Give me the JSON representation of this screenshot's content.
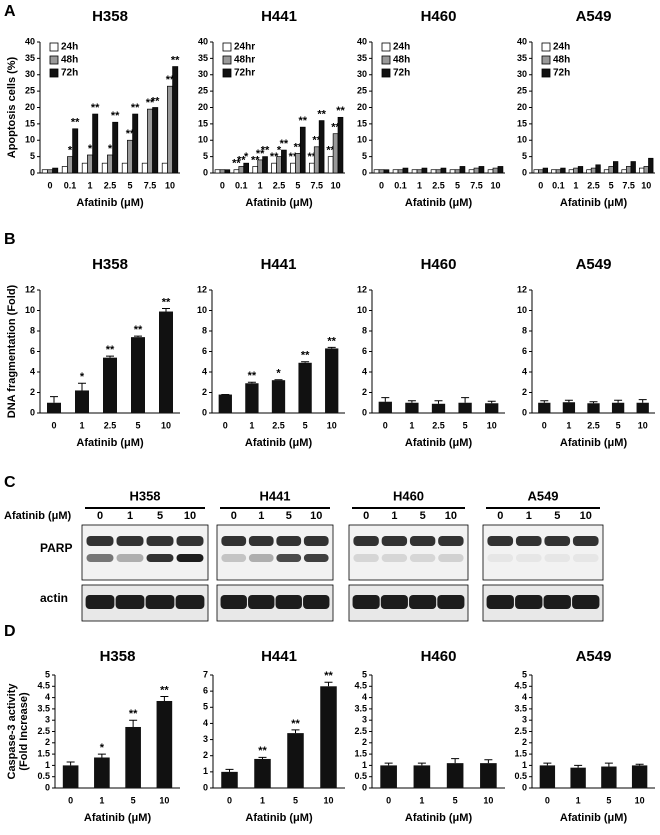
{
  "panel_labels": [
    "A",
    "B",
    "C",
    "D"
  ],
  "chart_data": [
    {
      "type": "bar",
      "title": "H358",
      "ylabel": [
        "Apoptosis cells (%)"
      ],
      "xlabel": "Afatinib (μM)",
      "categories": [
        "0",
        "0.1",
        "1",
        "2.5",
        "5",
        "7.5",
        "10"
      ],
      "ylim": [
        0,
        40
      ],
      "yticks": [
        0,
        5,
        10,
        15,
        20,
        25,
        30,
        35,
        40
      ],
      "legend": "upper left",
      "series": [
        {
          "name": "24h",
          "color": "#ffffff",
          "values": [
            1,
            2,
            3,
            3,
            3,
            3,
            3
          ],
          "stars": [
            null,
            null,
            null,
            null,
            null,
            null,
            null
          ]
        },
        {
          "name": "48h",
          "color": "#999999",
          "values": [
            1,
            5,
            5.5,
            5.5,
            10,
            19.5,
            26.5
          ],
          "stars": [
            null,
            "*",
            "*",
            "*",
            "**",
            "**",
            "**"
          ]
        },
        {
          "name": "72h",
          "color": "#111111",
          "values": [
            1.5,
            13.5,
            18,
            15.5,
            18,
            20,
            32.5
          ],
          "stars": [
            null,
            "**",
            "**",
            "**",
            "**",
            "**",
            "**"
          ]
        }
      ]
    },
    {
      "type": "bar",
      "title": "H441",
      "xlabel": "Afatinib (μM)",
      "categories": [
        "0",
        "0.1",
        "1",
        "2.5",
        "5",
        "7.5",
        "10"
      ],
      "ylim": [
        0,
        40
      ],
      "yticks": [
        0,
        5,
        10,
        15,
        20,
        25,
        30,
        35,
        40
      ],
      "legend": "upper left",
      "series": [
        {
          "name": "24hr",
          "color": "#ffffff",
          "values": [
            1,
            1,
            2,
            3,
            3,
            3,
            5
          ],
          "stars": [
            null,
            "**",
            "**",
            "**",
            "**",
            "**",
            "**"
          ]
        },
        {
          "name": "48hr",
          "color": "#999999",
          "values": [
            1,
            2,
            4,
            5,
            6,
            8,
            12
          ],
          "stars": [
            null,
            "**",
            "**",
            "*",
            "**",
            "**",
            "**"
          ]
        },
        {
          "name": "72hr",
          "color": "#111111",
          "values": [
            1,
            3,
            5,
            7,
            14,
            16,
            17
          ],
          "stars": [
            null,
            "*",
            "**",
            "**",
            "**",
            "**",
            "**"
          ]
        }
      ]
    },
    {
      "type": "bar",
      "title": "H460",
      "xlabel": "Afatinib (μM)",
      "categories": [
        "0",
        "0.1",
        "1",
        "2.5",
        "5",
        "7.5",
        "10"
      ],
      "ylim": [
        0,
        40
      ],
      "yticks": [
        0,
        5,
        10,
        15,
        20,
        25,
        30,
        35,
        40
      ],
      "legend": "upper left",
      "series": [
        {
          "name": "24h",
          "color": "#ffffff",
          "values": [
            1,
            1,
            1,
            1,
            1,
            1,
            1
          ]
        },
        {
          "name": "48h",
          "color": "#999999",
          "values": [
            1,
            1,
            1,
            1,
            1,
            1.5,
            1.5
          ]
        },
        {
          "name": "72h",
          "color": "#111111",
          "values": [
            1,
            1.5,
            1.5,
            1.5,
            2,
            2,
            2
          ]
        }
      ]
    },
    {
      "type": "bar",
      "title": "A549",
      "xlabel": "Afatinib (μM)",
      "categories": [
        "0",
        "0.1",
        "1",
        "2.5",
        "5",
        "7.5",
        "10"
      ],
      "ylim": [
        0,
        40
      ],
      "yticks": [
        0,
        5,
        10,
        15,
        20,
        25,
        30,
        35,
        40
      ],
      "legend": "upper left",
      "series": [
        {
          "name": "24h",
          "color": "#ffffff",
          "values": [
            1,
            1,
            1,
            1,
            1,
            1,
            1.5
          ]
        },
        {
          "name": "48h",
          "color": "#999999",
          "values": [
            1,
            1,
            1.5,
            1.5,
            2,
            2,
            2
          ]
        },
        {
          "name": "72h",
          "color": "#111111",
          "values": [
            1.5,
            1.5,
            2,
            2.5,
            3.5,
            3.5,
            4.5
          ]
        }
      ]
    },
    {
      "type": "bar",
      "title": "H358",
      "ylabel": [
        "DNA fragmentation (Fold)"
      ],
      "xlabel": "Afatinib (μM)",
      "categories": [
        "0",
        "1",
        "2.5",
        "5",
        "10"
      ],
      "ylim": [
        0,
        12
      ],
      "yticks": [
        0,
        2,
        4,
        6,
        8,
        10,
        12
      ],
      "color": "#111111",
      "values": [
        1,
        2.2,
        5.4,
        7.4,
        9.9
      ],
      "errors": [
        0.6,
        0.7,
        0.15,
        0.1,
        0.3
      ],
      "stars": [
        null,
        "*",
        "**",
        "**",
        "**"
      ]
    },
    {
      "type": "bar",
      "title": "H441",
      "xlabel": "Afatinib (μM)",
      "categories": [
        "0",
        "1",
        "2.5",
        "5",
        "10"
      ],
      "ylim": [
        0,
        12
      ],
      "yticks": [
        0,
        2,
        4,
        6,
        8,
        10,
        12
      ],
      "color": "#111111",
      "values": [
        1.8,
        2.9,
        3.2,
        4.9,
        6.3
      ],
      "errors": [
        0,
        0.1,
        0.05,
        0.1,
        0.1
      ],
      "stars": [
        null,
        "**",
        "*",
        "**",
        "**"
      ]
    },
    {
      "type": "bar",
      "title": "H460",
      "xlabel": "Afatinib (μM)",
      "categories": [
        "0",
        "1",
        "2.5",
        "5",
        "10"
      ],
      "ylim": [
        0,
        12
      ],
      "yticks": [
        0,
        2,
        4,
        6,
        8,
        10,
        12
      ],
      "color": "#111111",
      "values": [
        1.1,
        1,
        0.9,
        1,
        0.95
      ],
      "errors": [
        0.4,
        0.2,
        0.3,
        0.5,
        0.2
      ]
    },
    {
      "type": "bar",
      "title": "A549",
      "xlabel": "Afatinib (μM)",
      "categories": [
        "0",
        "1",
        "2.5",
        "5",
        "10"
      ],
      "ylim": [
        0,
        12
      ],
      "yticks": [
        0,
        2,
        4,
        6,
        8,
        10,
        12
      ],
      "color": "#111111",
      "values": [
        1,
        1.05,
        0.95,
        1,
        1
      ],
      "errors": [
        0.2,
        0.2,
        0.15,
        0.25,
        0.3
      ]
    },
    {
      "type": "bar",
      "title": "H358",
      "ylabel": [
        "Caspase-3 activity",
        "(Fold Increase)"
      ],
      "xlabel": "Afatinib (μM)",
      "categories": [
        "0",
        "1",
        "5",
        "10"
      ],
      "ylim": [
        0,
        5
      ],
      "yticks": [
        0,
        0.5,
        1,
        1.5,
        2,
        2.5,
        3,
        3.5,
        4,
        4.5,
        5
      ],
      "color": "#111111",
      "values": [
        1,
        1.35,
        2.7,
        3.85
      ],
      "errors": [
        0.15,
        0.15,
        0.3,
        0.2
      ],
      "stars": [
        null,
        "*",
        "**",
        "**"
      ]
    },
    {
      "type": "bar",
      "title": "H441",
      "xlabel": "Afatinib (μM)",
      "categories": [
        "0",
        "1",
        "5",
        "10"
      ],
      "ylim": [
        0,
        7
      ],
      "yticks": [
        0,
        1,
        2,
        3,
        4,
        5,
        6,
        7
      ],
      "color": "#111111",
      "values": [
        1,
        1.8,
        3.4,
        6.3
      ],
      "errors": [
        0.15,
        0.1,
        0.2,
        0.25
      ],
      "stars": [
        null,
        "**",
        "**",
        "**"
      ]
    },
    {
      "type": "bar",
      "title": "H460",
      "xlabel": "Afatinib (μM)",
      "categories": [
        "0",
        "1",
        "5",
        "10"
      ],
      "ylim": [
        0,
        5
      ],
      "yticks": [
        0,
        0.5,
        1,
        1.5,
        2,
        2.5,
        3,
        3.5,
        4,
        4.5,
        5
      ],
      "color": "#111111",
      "values": [
        1,
        1,
        1.1,
        1.1
      ],
      "errors": [
        0.1,
        0.1,
        0.2,
        0.15
      ]
    },
    {
      "type": "bar",
      "title": "A549",
      "xlabel": "Afatinib (μM)",
      "categories": [
        "0",
        "1",
        "5",
        "10"
      ],
      "ylim": [
        0,
        5
      ],
      "yticks": [
        0,
        0.5,
        1,
        1.5,
        2,
        2.5,
        3,
        3.5,
        4,
        4.5,
        5
      ],
      "color": "#111111",
      "values": [
        1,
        0.9,
        0.95,
        1
      ],
      "errors": [
        0.1,
        0.1,
        0.15,
        0.05
      ]
    }
  ],
  "blot": {
    "cell_lines": [
      "H358",
      "H441",
      "H460",
      "A549"
    ],
    "dose_label": "Afatinib (μM)",
    "doses": [
      "0",
      "1",
      "5",
      "10"
    ],
    "rows": [
      "PARP",
      "actin"
    ]
  }
}
